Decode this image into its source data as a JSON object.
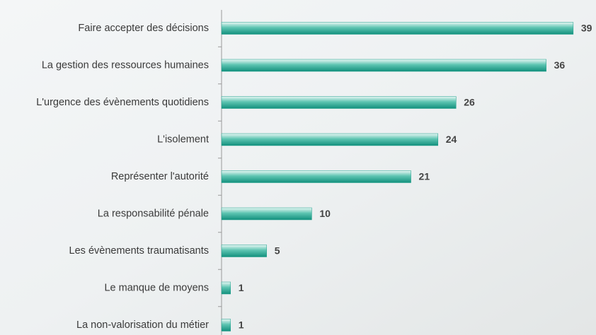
{
  "chart_data": {
    "type": "bar",
    "orientation": "horizontal",
    "categories": [
      "Faire accepter des décisions",
      "La gestion des ressources humaines",
      "L'urgence des évènements quotidiens",
      "L'isolement",
      "Représenter l'autorité",
      "La responsabilité pénale",
      "Les évènements traumatisants",
      "Le manque de moyens",
      "La non-valorisation du métier"
    ],
    "values": [
      39,
      36,
      26,
      24,
      21,
      10,
      5,
      1,
      1
    ],
    "color": "#1a9e8a"
  }
}
